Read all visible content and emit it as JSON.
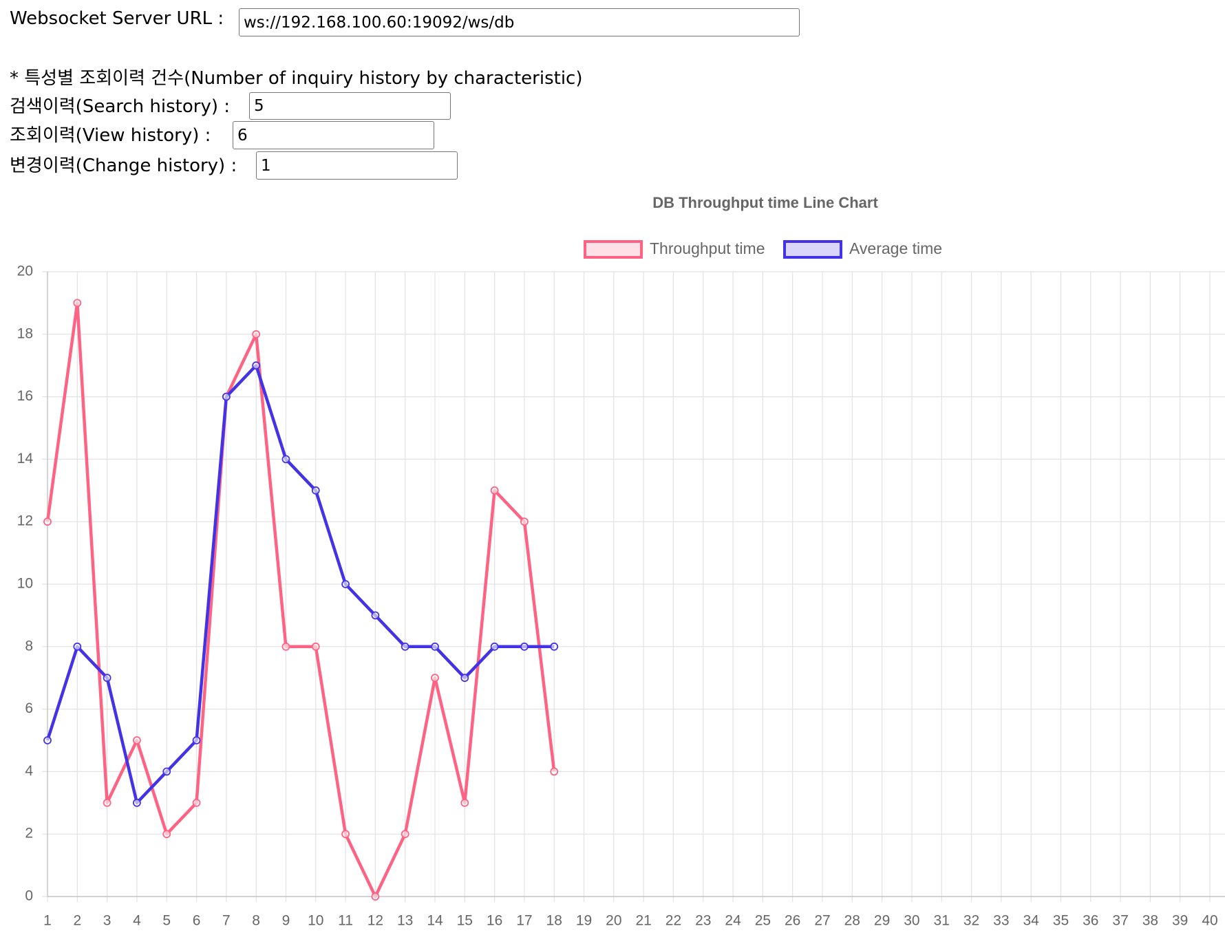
{
  "form": {
    "url_label": "Websocket Server URL :",
    "url_value": "ws://192.168.100.60:19092/ws/db",
    "heading": "* 특성별 조회이력 건수(Number of inquiry history by characteristic)",
    "fields": [
      {
        "label": "검색이력(Search history) :",
        "value": "5"
      },
      {
        "label": "조회이력(View history) :",
        "value": "6"
      },
      {
        "label": "변경이력(Change history) :",
        "value": "1"
      }
    ]
  },
  "chart_data": {
    "type": "line",
    "title": "DB Throughput time Line Chart",
    "categories": [
      "1",
      "2",
      "3",
      "4",
      "5",
      "6",
      "7",
      "8",
      "9",
      "10",
      "11",
      "12",
      "13",
      "14",
      "15",
      "16",
      "17",
      "18",
      "19",
      "20",
      "21",
      "22",
      "23",
      "24",
      "25",
      "26",
      "27",
      "28",
      "29",
      "30",
      "31",
      "32",
      "33",
      "34",
      "35",
      "36",
      "37",
      "38",
      "39",
      "40"
    ],
    "series": [
      {
        "name": "Throughput time",
        "color": "#ff6384",
        "values": [
          12,
          19,
          3,
          5,
          2,
          3,
          16,
          18,
          8,
          8,
          2,
          0,
          2,
          7,
          3,
          13,
          12,
          4,
          null,
          null,
          null,
          null,
          null,
          null,
          null,
          null,
          null,
          null,
          null,
          null,
          null,
          null,
          null,
          null,
          null,
          null,
          null,
          null,
          null,
          null
        ]
      },
      {
        "name": "Average time",
        "color": "#4433e6",
        "values": [
          5,
          8,
          7,
          3,
          4,
          5,
          16,
          17,
          14,
          13,
          10,
          9,
          8,
          8,
          7,
          8,
          8,
          8,
          null,
          null,
          null,
          null,
          null,
          null,
          null,
          null,
          null,
          null,
          null,
          null,
          null,
          null,
          null,
          null,
          null,
          null,
          null,
          null,
          null,
          null
        ]
      }
    ],
    "ylim": [
      0,
      20
    ],
    "yticks": [
      0,
      2,
      4,
      6,
      8,
      10,
      12,
      14,
      16,
      18,
      20
    ],
    "grid": true
  }
}
